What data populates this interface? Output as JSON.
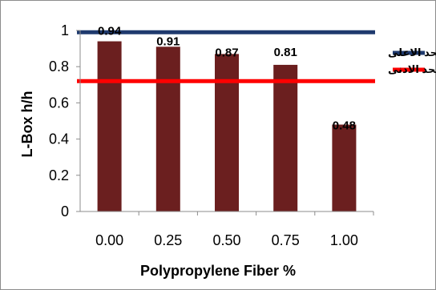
{
  "chart_data": {
    "type": "bar",
    "categories": [
      "0.00",
      "0.25",
      "0.50",
      "0.75",
      "1.00"
    ],
    "values": [
      0.94,
      0.91,
      0.87,
      0.81,
      0.48
    ],
    "data_labels": [
      "0.94",
      "0.91",
      "0.87",
      "0.81",
      "0.48"
    ],
    "ylim": [
      0,
      1
    ],
    "yticks": [
      "0",
      "0.2",
      "0.4",
      "0.6",
      "0.8",
      "1"
    ],
    "ytick_values": [
      0,
      0.2,
      0.4,
      0.6,
      0.8,
      1
    ],
    "xlabel": "Polypropylene Fiber %",
    "ylabel": "L-Box h/h",
    "grid": false,
    "legend_position": "right",
    "reference_lines": [
      {
        "name": "الحد الاعلى",
        "value": 0.99,
        "color": "#1f3a6e"
      },
      {
        "name": "الحد الادنى",
        "value": 0.72,
        "color": "#ff0000"
      }
    ],
    "bar_color": "#6b1f1f"
  }
}
